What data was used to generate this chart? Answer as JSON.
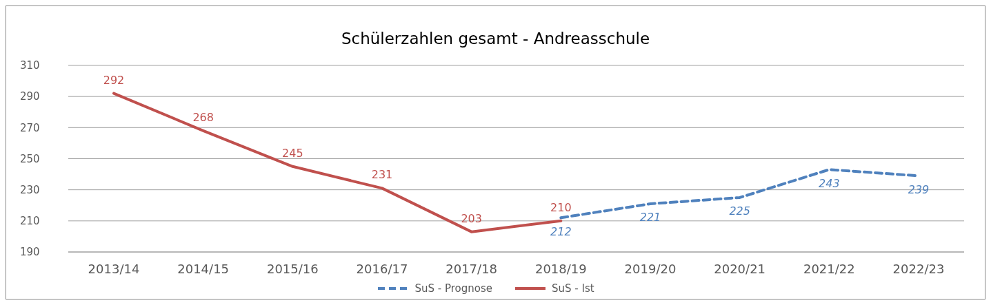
{
  "chart_data": {
    "type": "line",
    "title": "Schülerzahlen gesamt - Andreasschule",
    "categories": [
      "2013/14",
      "2014/15",
      "2015/16",
      "2016/17",
      "2017/18",
      "2018/19",
      "2019/20",
      "2020/21",
      "2021/22",
      "2022/23"
    ],
    "series": [
      {
        "name": "SuS - Prognose",
        "color": "#4f81bd",
        "line_style": "dashed",
        "values": [
          null,
          null,
          null,
          null,
          null,
          212,
          221,
          225,
          243,
          239
        ]
      },
      {
        "name": "SuS - Ist",
        "color": "#c0504d",
        "line_style": "solid",
        "values": [
          292,
          268,
          245,
          231,
          203,
          210,
          null,
          null,
          null,
          null
        ]
      }
    ],
    "ylim": [
      190,
      310
    ],
    "yticks": [
      190,
      210,
      230,
      250,
      270,
      290,
      310
    ],
    "grid": "y",
    "legend": "bottom",
    "marker": "none",
    "data_labels": true
  }
}
